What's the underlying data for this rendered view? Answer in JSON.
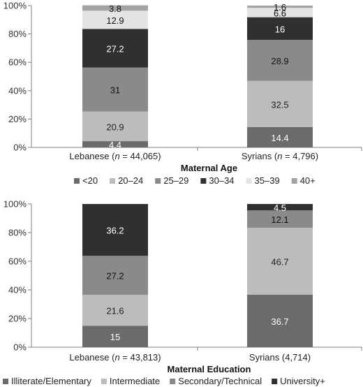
{
  "chart_data": [
    {
      "type": "bar",
      "stacked": true,
      "title": "Maternal Age",
      "ylim": [
        0,
        100
      ],
      "yticks": [
        "0%",
        "20%",
        "40%",
        "60%",
        "80%",
        "100%"
      ],
      "categories": [
        "Lebanese (n = 44,065)",
        "Syrians (n = 4,796)"
      ],
      "category_parts": [
        {
          "pre": "Lebanese (",
          "n": "n",
          "post": " = 44,065)"
        },
        {
          "pre": "Syrians (",
          "n": "n",
          "post": " = 4,796)"
        }
      ],
      "series": [
        {
          "name": "<20",
          "values": [
            4.4,
            14.4
          ],
          "labels": [
            "4.4",
            "14.4"
          ],
          "color": "#6b6b6b",
          "text_color": "#ffffff"
        },
        {
          "name": "20–24",
          "values": [
            20.9,
            32.5
          ],
          "labels": [
            "20.9",
            "32.5"
          ],
          "color": "#bcbcbc",
          "text_color": "#222222"
        },
        {
          "name": "25–29",
          "values": [
            31,
            28.9
          ],
          "labels": [
            "31",
            "28.9"
          ],
          "color": "#8a8a8a",
          "text_color": "#111111"
        },
        {
          "name": "30–34",
          "values": [
            27.2,
            16
          ],
          "labels": [
            "27.2",
            "16"
          ],
          "color": "#303030",
          "text_color": "#ffffff"
        },
        {
          "name": "35–39",
          "values": [
            12.9,
            6.6
          ],
          "labels": [
            "12.9",
            "6.6"
          ],
          "color": "#e4e4e4",
          "text_color": "#111111"
        },
        {
          "name": "40+",
          "values": [
            3.8,
            1.6
          ],
          "labels": [
            "3.8",
            "1.6"
          ],
          "color": "#a3a3a3",
          "text_color": "#111111"
        }
      ],
      "legend_position": "bottom",
      "grid": false
    },
    {
      "type": "bar",
      "stacked": true,
      "title": "Maternal Education",
      "ylim": [
        0,
        100
      ],
      "yticks": [
        "0%",
        "20%",
        "40%",
        "60%",
        "80%",
        "100%"
      ],
      "categories": [
        "Lebanese (n = 43,813)",
        "Syrians (4,714)"
      ],
      "category_parts": [
        {
          "pre": "Lebanese (",
          "n": "n",
          "post": " = 43,813)"
        },
        {
          "pre": "Syrians (4,714)",
          "n": "",
          "post": ""
        }
      ],
      "series": [
        {
          "name": "Illiterate/Elementary",
          "values": [
            15,
            36.7
          ],
          "labels": [
            "15",
            "36.7"
          ],
          "color": "#6b6b6b",
          "text_color": "#ffffff"
        },
        {
          "name": "Intermediate",
          "values": [
            21.6,
            46.7
          ],
          "labels": [
            "21.6",
            "46.7"
          ],
          "color": "#bcbcbc",
          "text_color": "#222222"
        },
        {
          "name": "Secondary/Technical",
          "values": [
            27.2,
            12.1
          ],
          "labels": [
            "27.2",
            "12.1"
          ],
          "color": "#8a8a8a",
          "text_color": "#111111"
        },
        {
          "name": "University+",
          "values": [
            36.2,
            4.5
          ],
          "labels": [
            "36.2",
            "4.5"
          ],
          "color": "#303030",
          "text_color": "#ffffff"
        }
      ],
      "legend_position": "bottom",
      "grid": false
    }
  ]
}
